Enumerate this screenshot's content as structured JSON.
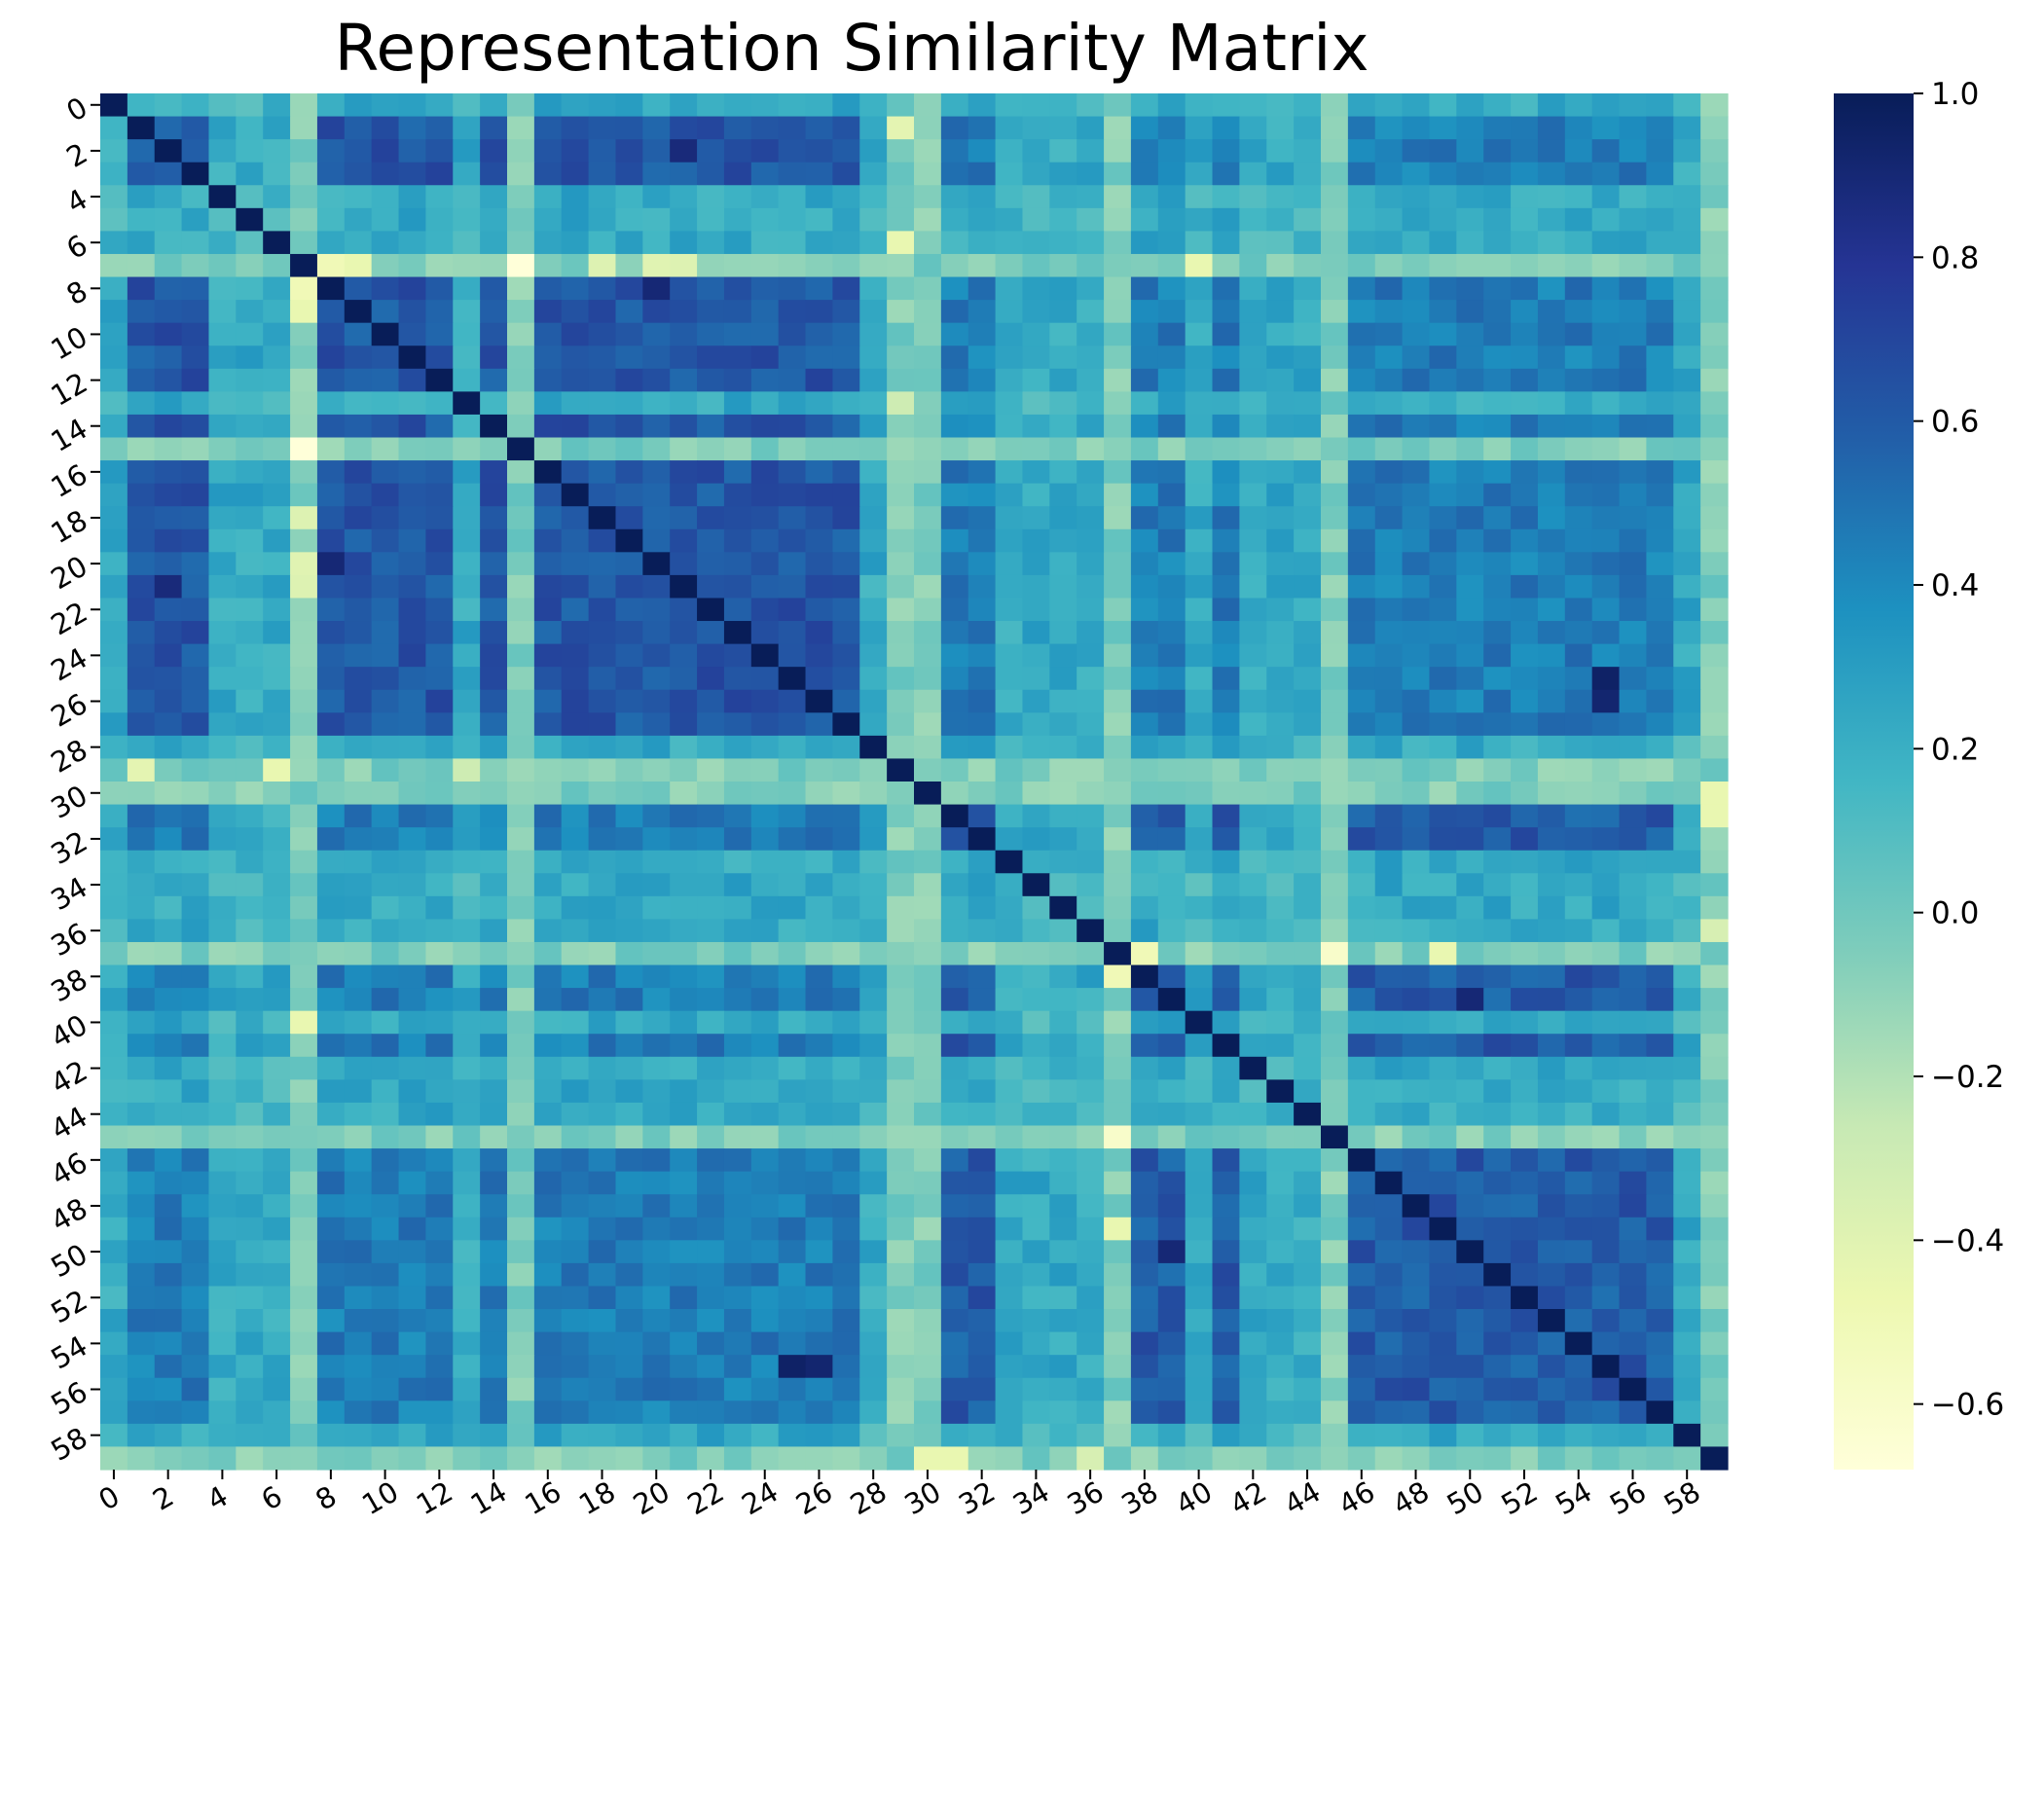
{
  "chart_data": {
    "type": "heatmap",
    "title": "Representation Similarity Matrix",
    "xlabel": "",
    "ylabel": "",
    "colormap": "YlGnBu",
    "color_stops": [
      "#ffffd9",
      "#edf8b1",
      "#c7e9b4",
      "#7fcdbb",
      "#41b6c4",
      "#1d91c0",
      "#225ea8",
      "#253494",
      "#081d58"
    ],
    "value_range": [
      -0.68,
      1.0
    ],
    "x_tick_labels": [
      "0",
      "2",
      "4",
      "6",
      "8",
      "10",
      "12",
      "14",
      "16",
      "18",
      "20",
      "22",
      "24",
      "26",
      "28",
      "30",
      "32",
      "34",
      "36",
      "38",
      "40",
      "42",
      "44",
      "46",
      "48",
      "50",
      "52",
      "54",
      "56",
      "58"
    ],
    "y_tick_labels": [
      "0",
      "2",
      "4",
      "6",
      "8",
      "10",
      "12",
      "14",
      "16",
      "18",
      "20",
      "22",
      "24",
      "26",
      "28",
      "30",
      "32",
      "34",
      "36",
      "38",
      "40",
      "42",
      "44",
      "46",
      "48",
      "50",
      "52",
      "54",
      "56",
      "58"
    ],
    "colorbar_ticks": [
      {
        "value": 1.0,
        "label": "1.0"
      },
      {
        "value": 0.8,
        "label": "0.8"
      },
      {
        "value": 0.6,
        "label": "0.6"
      },
      {
        "value": 0.4,
        "label": "0.4"
      },
      {
        "value": 0.2,
        "label": "0.2"
      },
      {
        "value": 0.0,
        "label": "0.0"
      },
      {
        "value": -0.2,
        "label": "−0.2"
      },
      {
        "value": -0.4,
        "label": "−0.4"
      },
      {
        "value": -0.6,
        "label": "−0.6"
      }
    ],
    "groups": {
      "A": [
        1,
        2,
        3,
        8,
        9,
        10,
        11,
        12,
        14,
        16,
        17,
        18,
        19,
        20,
        21,
        22,
        23,
        24,
        25,
        26,
        27
      ],
      "B": [
        31,
        32,
        38,
        39,
        41,
        46,
        47,
        48,
        49,
        50,
        51,
        52,
        53,
        54,
        55,
        56,
        57
      ],
      "C": [
        0,
        4,
        5,
        6,
        13,
        15,
        28,
        29,
        30,
        33,
        34,
        35,
        36,
        37,
        40,
        42,
        43,
        44,
        45,
        58,
        59
      ],
      "L": [
        7,
        15,
        29,
        30,
        37,
        45,
        59
      ]
    },
    "base_similarity": {
      "AA": 0.62,
      "BB": 0.6,
      "AB": 0.45,
      "CC": 0.15,
      "AC": 0.23,
      "BC": 0.23,
      "L": -0.05
    },
    "noise_amplitude": 0.1,
    "diagonal_value": 1.0,
    "highlight_cells": [
      {
        "row": 7,
        "col": 8,
        "value": -0.5
      },
      {
        "row": 7,
        "col": 9,
        "value": -0.45
      },
      {
        "row": 7,
        "col": 15,
        "value": -0.68
      },
      {
        "row": 7,
        "col": 18,
        "value": -0.38
      },
      {
        "row": 7,
        "col": 20,
        "value": -0.4
      },
      {
        "row": 7,
        "col": 21,
        "value": -0.38
      },
      {
        "row": 7,
        "col": 40,
        "value": -0.45
      },
      {
        "row": 29,
        "col": 1,
        "value": -0.42
      },
      {
        "row": 29,
        "col": 6,
        "value": -0.45
      },
      {
        "row": 29,
        "col": 13,
        "value": -0.3
      },
      {
        "row": 37,
        "col": 38,
        "value": -0.5
      },
      {
        "row": 37,
        "col": 45,
        "value": -0.6
      },
      {
        "row": 37,
        "col": 49,
        "value": -0.45
      },
      {
        "row": 59,
        "col": 30,
        "value": -0.45
      },
      {
        "row": 59,
        "col": 31,
        "value": -0.45
      },
      {
        "row": 59,
        "col": 36,
        "value": -0.35
      },
      {
        "row": 25,
        "col": 55,
        "value": 0.95
      },
      {
        "row": 26,
        "col": 55,
        "value": 0.92
      },
      {
        "row": 8,
        "col": 20,
        "value": 0.9
      },
      {
        "row": 2,
        "col": 21,
        "value": 0.88
      },
      {
        "row": 39,
        "col": 50,
        "value": 0.9
      }
    ]
  }
}
